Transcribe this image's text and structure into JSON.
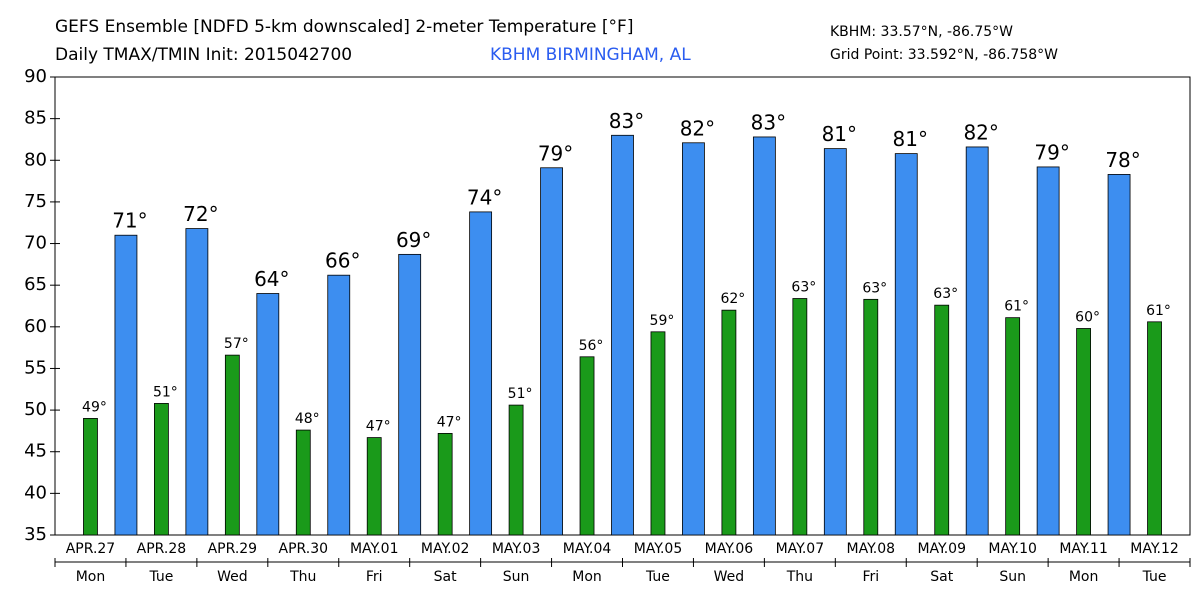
{
  "chart_data": {
    "type": "bar",
    "title": "GEFS Ensemble [NDFD 5-km downscaled] 2-meter Temperature [°F]",
    "subtitle": "Daily TMAX/TMIN Init: 2015042700",
    "station": "KBHM BIRMINGHAM, AL",
    "station_coords": "KBHM: 33.57°N, -86.75°W",
    "grid_point": "Grid Point: 33.592°N, -86.758°W",
    "categories": [
      "APR.27",
      "APR.28",
      "APR.29",
      "APR.30",
      "MAY.01",
      "MAY.02",
      "MAY.03",
      "MAY.04",
      "MAY.05",
      "MAY.06",
      "MAY.07",
      "MAY.08",
      "MAY.09",
      "MAY.10",
      "MAY.11",
      "MAY.12"
    ],
    "weekdays": [
      "Mon",
      "Tue",
      "Wed",
      "Thu",
      "Fri",
      "Sat",
      "Sun",
      "Mon",
      "Tue",
      "Wed",
      "Thu",
      "Fri",
      "Sat",
      "Sun",
      "Mon",
      "Tue"
    ],
    "series": [
      {
        "color": "#1a9a1a",
        "values": [
          49.0,
          50.8,
          56.6,
          47.6,
          46.7,
          47.2,
          50.6,
          56.4,
          59.4,
          62.0,
          63.4,
          63.3,
          62.6,
          61.1,
          59.8,
          60.6
        ],
        "value_labels": [
          "49°",
          "51°",
          "57°",
          "48°",
          "47°",
          "47°",
          "51°",
          "56°",
          "59°",
          "62°",
          "63°",
          "63°",
          "63°",
          "61°",
          "60°",
          "61°"
        ]
      },
      {
        "color": "#3d8ef0",
        "values": [
          71.0,
          71.8,
          64.0,
          66.2,
          68.7,
          73.8,
          79.1,
          83.0,
          82.1,
          82.8,
          81.4,
          80.8,
          81.6,
          79.2,
          78.3,
          null
        ],
        "value_labels": [
          "71°",
          "72°",
          "64°",
          "66°",
          "69°",
          "74°",
          "79°",
          "83°",
          "82°",
          "83°",
          "81°",
          "81°",
          "82°",
          "79°",
          "78°",
          null
        ]
      }
    ],
    "ylim": [
      35,
      90
    ],
    "yticks": [
      35,
      40,
      45,
      50,
      55,
      60,
      65,
      70,
      75,
      80,
      85,
      90
    ]
  }
}
